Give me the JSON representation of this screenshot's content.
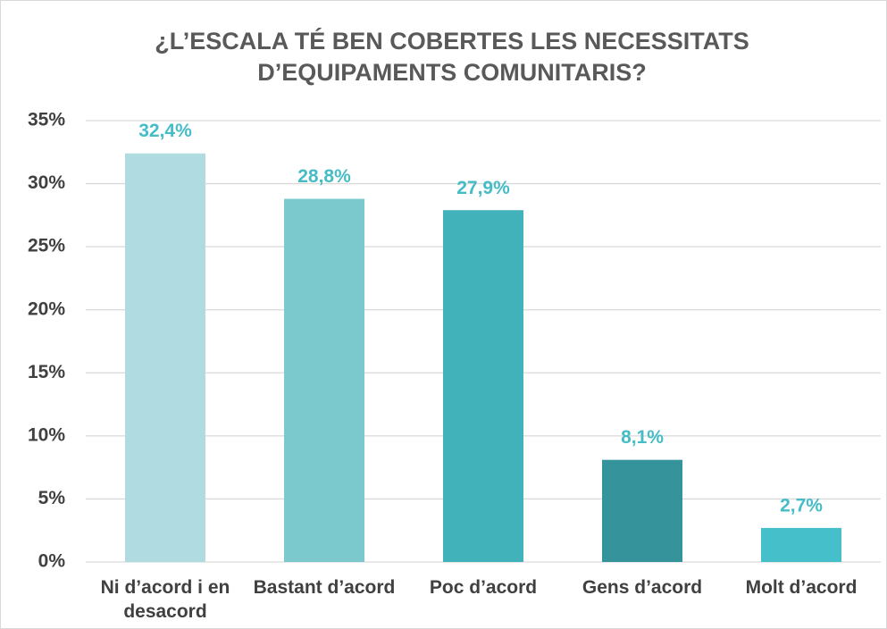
{
  "chart_data": {
    "type": "bar",
    "title": "¿L’ESCALA TÉ BEN COBERTES LES NECESSITATS D’EQUIPAMENTS COMUNITARIS?",
    "categories": [
      "Ni d’acord i en desacord",
      "Bastant d’acord",
      "Poc d’acord",
      "Gens d’acord",
      "Molt d’acord"
    ],
    "values": [
      32.4,
      28.8,
      27.9,
      8.1,
      2.7
    ],
    "value_labels": [
      "32,4%",
      "28,8%",
      "27,9%",
      "8,1%",
      "2,7%"
    ],
    "colors": [
      "#b0dbe0",
      "#7bc8cd",
      "#41b2ba",
      "#35939b",
      "#45bfc9"
    ],
    "label_color": "#45bcc6",
    "ylim": [
      0,
      35
    ],
    "yticks": [
      {
        "value": 0,
        "label": "0%"
      },
      {
        "value": 5,
        "label": "5%"
      },
      {
        "value": 10,
        "label": "10%"
      },
      {
        "value": 15,
        "label": "15%"
      },
      {
        "value": 20,
        "label": "20%"
      },
      {
        "value": 25,
        "label": "25%"
      },
      {
        "value": 30,
        "label": "30%"
      },
      {
        "value": 35,
        "label": "35%"
      }
    ],
    "grid": true
  }
}
